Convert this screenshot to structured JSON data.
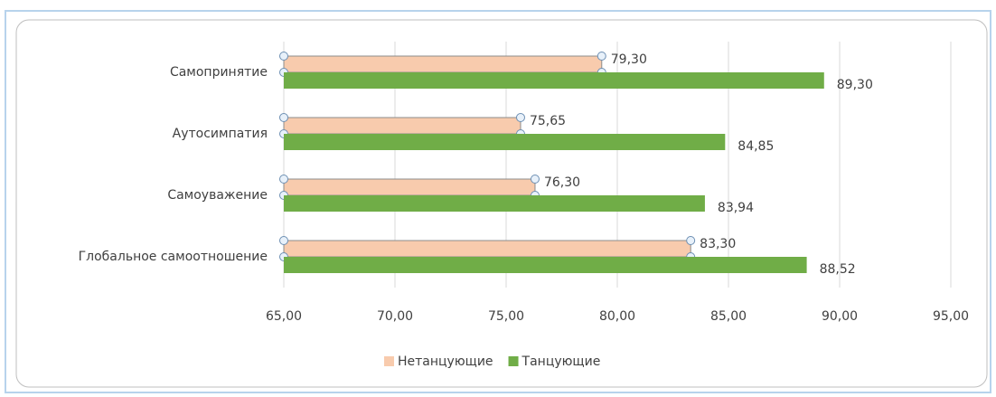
{
  "chart_data": {
    "type": "hbar",
    "categories": [
      "Самопринятие",
      "Аутосимпатия",
      "Самоуважение",
      "Глобальное самоотношение"
    ],
    "series": [
      {
        "name": "Нетанцующие",
        "color": "#f8cbad",
        "values": [
          79.3,
          75.65,
          76.3,
          83.3
        ],
        "value_labels": [
          "79,30",
          "75,65",
          "76,30",
          "83,30"
        ]
      },
      {
        "name": "Танцующие",
        "color": "#70ad47",
        "values": [
          89.3,
          84.85,
          83.94,
          88.52
        ],
        "value_labels": [
          "89,30",
          "84,85",
          "83,94",
          "88,52"
        ]
      }
    ],
    "xlim": [
      65,
      95
    ],
    "xticks": [
      {
        "value": 65,
        "label": "65,00"
      },
      {
        "value": 70,
        "label": "70,00"
      },
      {
        "value": 75,
        "label": "75,00"
      },
      {
        "value": 80,
        "label": "80,00"
      },
      {
        "value": 85,
        "label": "85,00"
      },
      {
        "value": 90,
        "label": "90,00"
      },
      {
        "value": 95,
        "label": "95,00"
      }
    ],
    "grid": true,
    "legend": "bottom"
  }
}
